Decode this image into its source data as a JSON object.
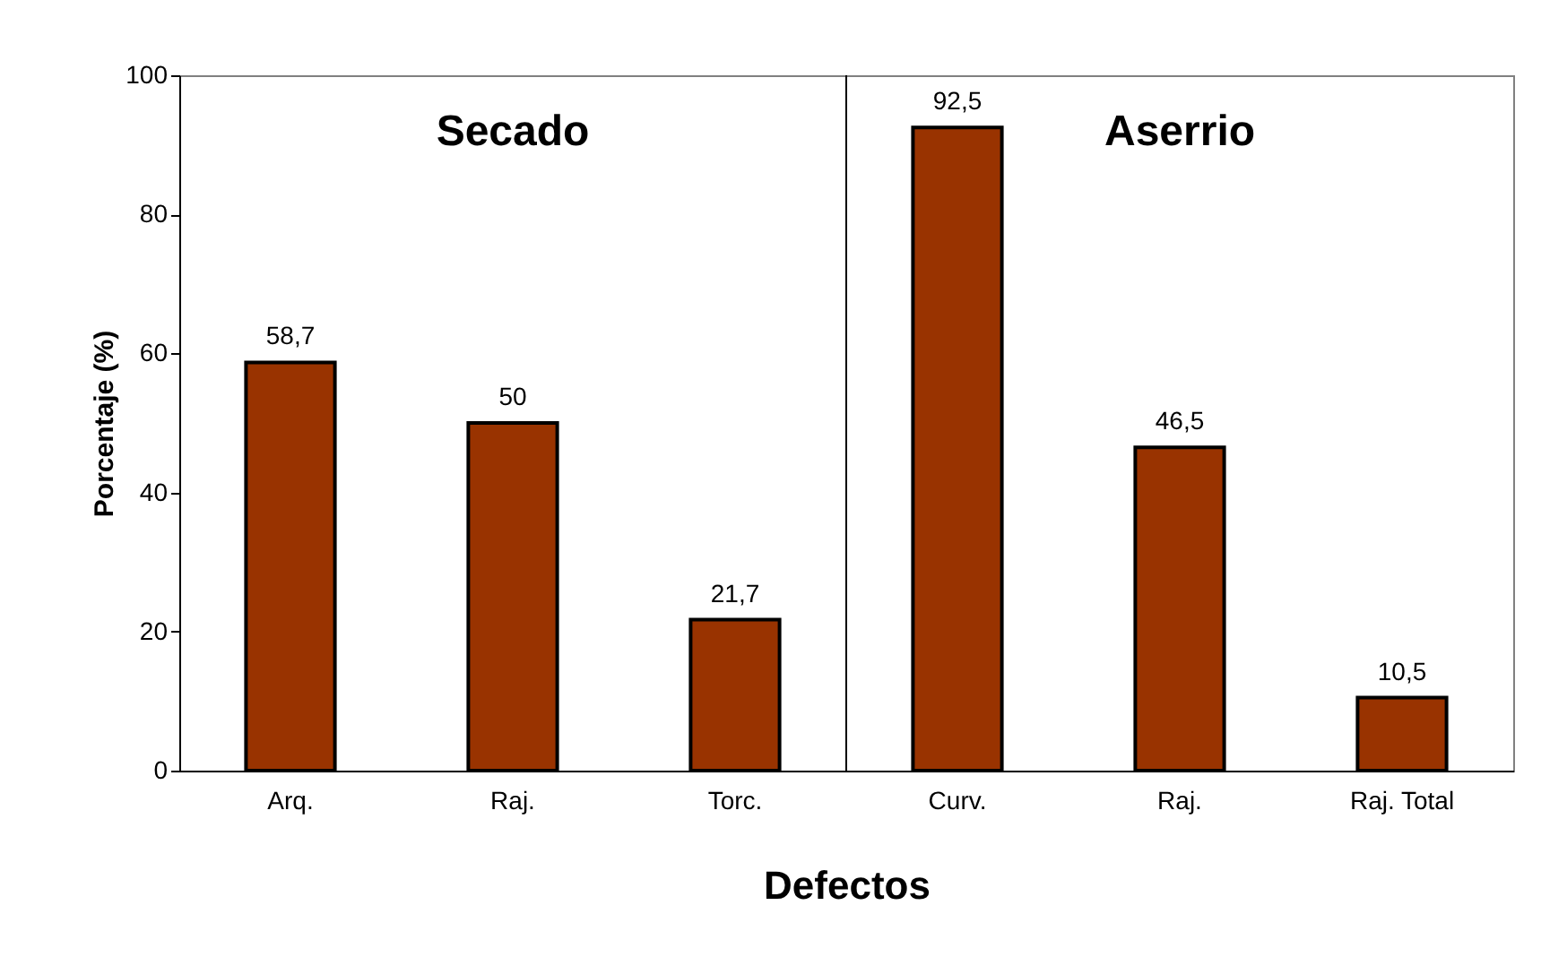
{
  "chart_data": {
    "type": "bar",
    "categories": [
      "Arq.",
      "Raj.",
      "Torc.",
      "Curv.",
      "Raj.",
      "Raj. Total"
    ],
    "values": [
      58.7,
      50,
      21.7,
      92.5,
      46.5,
      10.5
    ],
    "value_labels": [
      "58,7",
      "50",
      "21,7",
      "92,5",
      "46,5",
      "10,5"
    ],
    "color": "#993300",
    "xlabel": "Defectos",
    "ylabel": "Porcentaje (%)",
    "ylim": [
      0,
      100
    ],
    "yticks": [
      0,
      20,
      40,
      60,
      80,
      100
    ],
    "annotations": [
      "Secado",
      "Aserrio"
    ],
    "grid": false
  }
}
